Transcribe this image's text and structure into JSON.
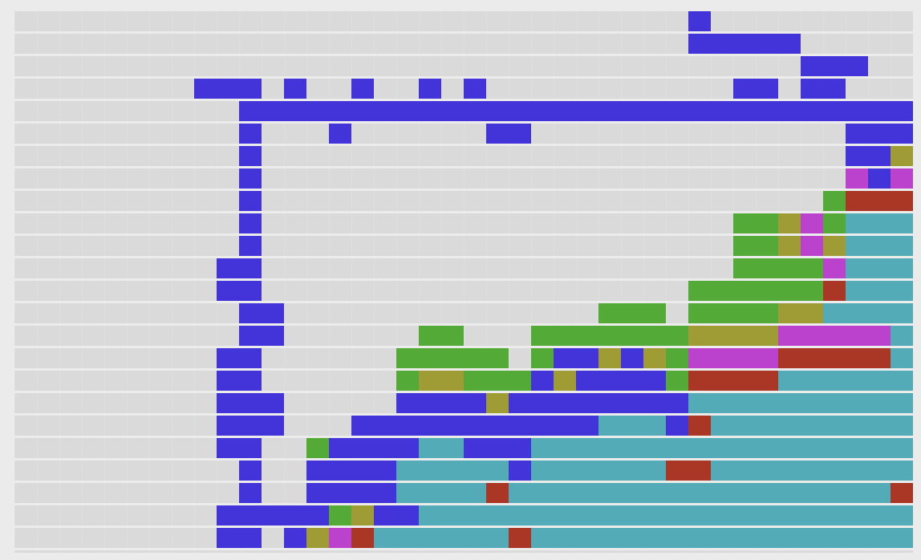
{
  "colors": {
    "background": "#dadada",
    "blue": "#4234d8",
    "green": "#53aa37",
    "olive": "#9f9c36",
    "magenta": "#bb42cc",
    "red": "#aa3726",
    "teal": "#54abb8"
  },
  "rows": [
    [
      [
        30,
        1,
        "blue"
      ]
    ],
    [
      [
        30,
        5,
        "blue"
      ]
    ],
    [
      [
        35,
        3,
        "blue"
      ]
    ],
    [
      [
        8,
        3,
        "blue"
      ],
      [
        12,
        1,
        "blue"
      ],
      [
        15,
        1,
        "blue"
      ],
      [
        18,
        1,
        "blue"
      ],
      [
        20,
        1,
        "blue"
      ],
      [
        32,
        2,
        "blue"
      ],
      [
        35,
        2,
        "blue"
      ]
    ],
    [
      [
        10,
        30,
        "blue"
      ]
    ],
    [
      [
        10,
        1,
        "blue"
      ],
      [
        14,
        1,
        "blue"
      ],
      [
        21,
        2,
        "blue"
      ],
      [
        37,
        3,
        "blue"
      ]
    ],
    [
      [
        10,
        1,
        "blue"
      ],
      [
        37,
        2,
        "blue"
      ],
      [
        39,
        1,
        "olive"
      ]
    ],
    [
      [
        10,
        1,
        "blue"
      ],
      [
        37,
        1,
        "magenta"
      ],
      [
        38,
        1,
        "blue"
      ],
      [
        39,
        1,
        "magenta"
      ]
    ],
    [
      [
        10,
        1,
        "blue"
      ],
      [
        36,
        1,
        "green"
      ],
      [
        37,
        3,
        "red"
      ]
    ],
    [
      [
        10,
        1,
        "blue"
      ],
      [
        32,
        2,
        "green"
      ],
      [
        34,
        1,
        "olive"
      ],
      [
        35,
        1,
        "magenta"
      ],
      [
        36,
        1,
        "green"
      ],
      [
        37,
        3,
        "teal"
      ]
    ],
    [
      [
        10,
        1,
        "blue"
      ],
      [
        32,
        2,
        "green"
      ],
      [
        34,
        1,
        "olive"
      ],
      [
        35,
        1,
        "magenta"
      ],
      [
        36,
        1,
        "olive"
      ],
      [
        37,
        3,
        "teal"
      ]
    ],
    [
      [
        9,
        2,
        "blue"
      ],
      [
        32,
        4,
        "green"
      ],
      [
        36,
        1,
        "magenta"
      ],
      [
        37,
        3,
        "teal"
      ]
    ],
    [
      [
        9,
        2,
        "blue"
      ],
      [
        30,
        6,
        "green"
      ],
      [
        36,
        1,
        "red"
      ],
      [
        37,
        3,
        "teal"
      ]
    ],
    [
      [
        10,
        2,
        "blue"
      ],
      [
        26,
        3,
        "green"
      ],
      [
        30,
        4,
        "green"
      ],
      [
        34,
        2,
        "olive"
      ],
      [
        36,
        4,
        "teal"
      ]
    ],
    [
      [
        10,
        2,
        "blue"
      ],
      [
        18,
        2,
        "green"
      ],
      [
        23,
        7,
        "green"
      ],
      [
        30,
        4,
        "olive"
      ],
      [
        34,
        5,
        "magenta"
      ],
      [
        39,
        1,
        "teal"
      ]
    ],
    [
      [
        9,
        2,
        "blue"
      ],
      [
        17,
        5,
        "green"
      ],
      [
        23,
        1,
        "green"
      ],
      [
        24,
        2,
        "blue"
      ],
      [
        26,
        1,
        "olive"
      ],
      [
        27,
        1,
        "blue"
      ],
      [
        28,
        1,
        "olive"
      ],
      [
        29,
        1,
        "green"
      ],
      [
        30,
        4,
        "magenta"
      ],
      [
        34,
        5,
        "red"
      ],
      [
        39,
        1,
        "teal"
      ]
    ],
    [
      [
        9,
        2,
        "blue"
      ],
      [
        17,
        1,
        "green"
      ],
      [
        18,
        2,
        "olive"
      ],
      [
        20,
        3,
        "green"
      ],
      [
        23,
        1,
        "blue"
      ],
      [
        24,
        1,
        "olive"
      ],
      [
        25,
        4,
        "blue"
      ],
      [
        29,
        1,
        "green"
      ],
      [
        30,
        4,
        "red"
      ],
      [
        34,
        6,
        "teal"
      ]
    ],
    [
      [
        9,
        3,
        "blue"
      ],
      [
        17,
        4,
        "blue"
      ],
      [
        21,
        1,
        "olive"
      ],
      [
        22,
        8,
        "blue"
      ],
      [
        30,
        10,
        "teal"
      ]
    ],
    [
      [
        9,
        3,
        "blue"
      ],
      [
        15,
        11,
        "blue"
      ],
      [
        26,
        3,
        "teal"
      ],
      [
        29,
        1,
        "blue"
      ],
      [
        30,
        1,
        "red"
      ],
      [
        31,
        9,
        "teal"
      ]
    ],
    [
      [
        9,
        2,
        "blue"
      ],
      [
        13,
        1,
        "green"
      ],
      [
        14,
        4,
        "blue"
      ],
      [
        18,
        2,
        "teal"
      ],
      [
        20,
        3,
        "blue"
      ],
      [
        23,
        17,
        "teal"
      ]
    ],
    [
      [
        10,
        1,
        "blue"
      ],
      [
        13,
        4,
        "blue"
      ],
      [
        17,
        5,
        "teal"
      ],
      [
        22,
        1,
        "blue"
      ],
      [
        23,
        6,
        "teal"
      ],
      [
        29,
        2,
        "red"
      ],
      [
        31,
        9,
        "teal"
      ]
    ],
    [
      [
        10,
        1,
        "blue"
      ],
      [
        13,
        4,
        "blue"
      ],
      [
        17,
        4,
        "teal"
      ],
      [
        21,
        1,
        "red"
      ],
      [
        22,
        17,
        "teal"
      ],
      [
        39,
        1,
        "red"
      ]
    ],
    [
      [
        9,
        5,
        "blue"
      ],
      [
        14,
        1,
        "green"
      ],
      [
        15,
        1,
        "olive"
      ],
      [
        16,
        2,
        "blue"
      ],
      [
        18,
        22,
        "teal"
      ]
    ],
    [
      [
        9,
        2,
        "blue"
      ],
      [
        12,
        1,
        "blue"
      ],
      [
        13,
        1,
        "olive"
      ],
      [
        14,
        1,
        "magenta"
      ],
      [
        15,
        1,
        "red"
      ],
      [
        16,
        6,
        "teal"
      ],
      [
        22,
        1,
        "red"
      ],
      [
        23,
        17,
        "teal"
      ]
    ]
  ]
}
